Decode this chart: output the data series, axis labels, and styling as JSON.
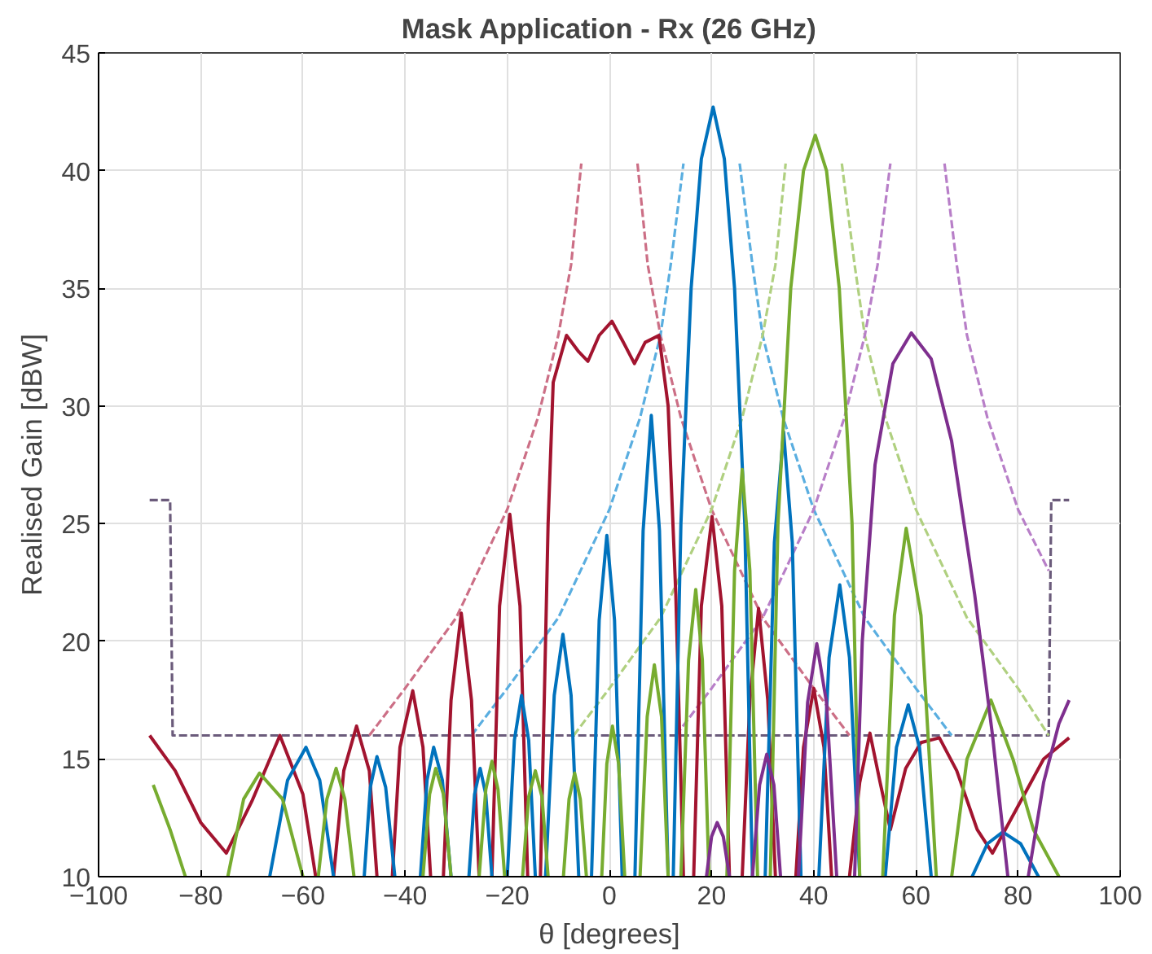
{
  "chart_data": {
    "type": "line",
    "title": "Mask Application - Rx (26 GHz)",
    "xlabel": "θ [degrees]",
    "ylabel": "Realised Gain [dBW]",
    "xlim": [
      -100,
      100
    ],
    "xticks": [
      -100,
      -80,
      -60,
      -40,
      -20,
      0,
      20,
      40,
      60,
      80,
      100
    ],
    "ylim": [
      10,
      45
    ],
    "yticks": [
      10,
      15,
      20,
      25,
      30,
      35,
      40,
      45
    ],
    "grid": true,
    "marker": "none",
    "series": [
      {
        "color": "#6b5b7b",
        "line_style": "dashed",
        "x": [
          -90,
          -86,
          -85.5,
          86,
          86.5,
          90
        ],
        "values": [
          26,
          26,
          16,
          16,
          26,
          26
        ]
      },
      {
        "color": "#cc6f86",
        "line_style": "dashed",
        "x": [
          -47,
          -40,
          -30,
          -20,
          -14,
          -10,
          -7.5,
          -5.5,
          0,
          5.5,
          7.5,
          10,
          14,
          20,
          30,
          40,
          47
        ],
        "values": [
          16,
          18,
          21,
          25.6,
          29.5,
          33,
          36,
          40.3,
          null,
          40.3,
          36,
          33,
          29.5,
          25.6,
          21,
          18,
          16
        ]
      },
      {
        "color": "#5aaee0",
        "line_style": "dashed",
        "x": [
          -27,
          -20,
          -10,
          0,
          6,
          10,
          12,
          14.5,
          20,
          25.5,
          28,
          30,
          34,
          40,
          50,
          60,
          67
        ],
        "values": [
          16,
          18,
          21,
          25.6,
          29.5,
          33,
          36,
          40.3,
          null,
          40.3,
          36,
          33,
          29.5,
          25.6,
          21,
          18,
          16
        ]
      },
      {
        "color": "#b0d080",
        "line_style": "dashed",
        "x": [
          -7,
          0,
          10,
          20,
          26,
          30,
          32.5,
          34.5,
          40,
          45.5,
          48,
          50,
          54,
          60,
          70,
          80,
          86
        ],
        "values": [
          16,
          18,
          21,
          25.6,
          29.5,
          33,
          36,
          40.3,
          null,
          40.3,
          36,
          33,
          29.5,
          25.6,
          21,
          18,
          16
        ]
      },
      {
        "color": "#b87fc8",
        "line_style": "dashed",
        "x": [
          13,
          20,
          30,
          40,
          46,
          50,
          52.5,
          55,
          60,
          65.6,
          68,
          70,
          74,
          80,
          86
        ],
        "values": [
          16,
          18,
          21,
          25.6,
          29.5,
          33,
          36,
          40.3,
          null,
          40.3,
          36,
          33,
          29.5,
          25.6,
          23
        ]
      },
      {
        "color": "#a2142f",
        "line_style": "solid",
        "x": [
          -90,
          -85,
          -80,
          -75,
          -70,
          -64.5,
          -60,
          -57.5,
          -56,
          -54,
          -52,
          -49.5,
          -47,
          -45.5,
          -44,
          -42.5,
          -41,
          -38.5,
          -36.5,
          -35,
          -34,
          -32.5,
          -31,
          -29,
          -27,
          -25.5,
          -24.5,
          -23,
          -21.5,
          -19.5,
          -17.5,
          -16,
          -14.5,
          -13.5,
          -12,
          -11,
          -8.4,
          -6,
          -4.2,
          -2,
          0.5,
          2.5,
          4.9,
          7,
          9.7,
          11.5,
          13,
          14.5,
          15.5,
          16.5,
          18,
          20.1,
          22,
          23.5,
          24.8,
          26,
          27.5,
          29.2,
          31,
          32.5,
          34.5,
          36.5,
          38,
          40,
          42,
          43.5,
          45,
          47,
          49,
          51,
          53,
          55,
          58,
          61,
          64.6,
          68,
          72,
          75,
          80,
          85,
          90
        ],
        "values": [
          16,
          14.5,
          12.3,
          11,
          13.2,
          16,
          13.5,
          10,
          null,
          10,
          14.5,
          16.4,
          14.5,
          10,
          null,
          10,
          15.5,
          17.9,
          15.5,
          10,
          null,
          10,
          17.5,
          21.2,
          17.5,
          10,
          null,
          10,
          21.5,
          25.4,
          21.5,
          10,
          null,
          10,
          25,
          31,
          33,
          32.3,
          31.9,
          33,
          33.6,
          32.8,
          31.8,
          32.7,
          33,
          30,
          22,
          10,
          null,
          10,
          21.5,
          25.3,
          21.5,
          10,
          null,
          10,
          17.5,
          21.4,
          17.5,
          10,
          null,
          10,
          15.5,
          18,
          15.5,
          10,
          null,
          10,
          14,
          16.1,
          14,
          12,
          14.6,
          15.7,
          15.9,
          14.5,
          12,
          11,
          13,
          15,
          15.9
        ]
      },
      {
        "color": "#0072bd",
        "line_style": "solid",
        "x": [
          -66.5,
          -63,
          -59.4,
          -56.7,
          -54,
          -53,
          -48,
          -46.8,
          -45.5,
          -43.8,
          -42,
          -41.5,
          -37,
          -35.7,
          -34.4,
          -32.7,
          -31,
          -30,
          -27.5,
          -26.4,
          -25.3,
          -24.2,
          -23,
          -22,
          -20,
          -18.6,
          -17.2,
          -15.8,
          -14.5,
          -13.5,
          -12.5,
          -10.8,
          -9.1,
          -7.5,
          -6,
          -5,
          -3.5,
          -2,
          -0.5,
          1,
          2.5,
          3.5,
          5,
          6.6,
          8.2,
          9.8,
          11.5,
          12,
          12.5,
          14,
          16,
          18,
          20.3,
          22.5,
          24.5,
          26.5,
          28,
          29,
          30.5,
          32.3,
          34.1,
          35.8,
          37.5,
          39,
          41,
          43,
          45.1,
          47,
          49,
          51,
          54,
          56.2,
          58.5,
          60.7,
          63,
          66,
          71,
          74,
          77,
          80.5,
          84
        ],
        "values": [
          10,
          14.1,
          15.5,
          14.1,
          10,
          null,
          10,
          13.8,
          15.1,
          13.8,
          10,
          null,
          10,
          14.1,
          15.5,
          14.1,
          10,
          null,
          10,
          13.5,
          14.6,
          13.5,
          10,
          null,
          10,
          15.8,
          17.7,
          15.8,
          10,
          null,
          10,
          17.7,
          20.3,
          17.7,
          10,
          null,
          10,
          20.9,
          24.5,
          20.9,
          10,
          null,
          10,
          24.7,
          29.6,
          24.7,
          10,
          null,
          10,
          25,
          35,
          40.5,
          42.7,
          40.5,
          35,
          25,
          10,
          null,
          10,
          24.2,
          28.9,
          24.2,
          10,
          null,
          10,
          19.3,
          22.4,
          19.3,
          10,
          null,
          10,
          15.5,
          17.3,
          15.5,
          10,
          null,
          10,
          11.4,
          11.9,
          11.4,
          10
        ]
      },
      {
        "color": "#77ac30",
        "line_style": "solid",
        "x": [
          -89.3,
          -86,
          -83,
          -80,
          -74.7,
          -71.6,
          -68.5,
          -64,
          -60,
          -59,
          -57,
          -55.3,
          -53.5,
          -51.8,
          -50,
          -45,
          -36.5,
          -35.2,
          -34,
          -32.5,
          -31,
          -30,
          -25.5,
          -24.2,
          -23,
          -21.8,
          -20.5,
          -19,
          -17,
          -15.8,
          -14.5,
          -13.2,
          -12,
          -11,
          -9,
          -7.9,
          -6.8,
          -5.7,
          -4.5,
          -3,
          -1.5,
          -0.5,
          0.6,
          1.8,
          3,
          4.5,
          6,
          7.4,
          8.8,
          10.2,
          11.5,
          13,
          14,
          15.5,
          16.9,
          18.2,
          19.5,
          21,
          23,
          24.5,
          26,
          27.5,
          29,
          30.5,
          31.5,
          33,
          35.5,
          38,
          40.3,
          42.5,
          45,
          47.5,
          49,
          51,
          53.5,
          55.8,
          58.1,
          61,
          64,
          65.5,
          67,
          70,
          74.7,
          79,
          83,
          88
        ],
        "values": [
          13.9,
          12,
          10,
          null,
          10,
          13.3,
          14.4,
          13.3,
          10,
          null,
          10,
          13.3,
          14.6,
          13.3,
          10,
          null,
          10,
          13.5,
          14.6,
          13.5,
          10,
          null,
          10,
          13.7,
          14.9,
          13.7,
          10,
          null,
          10,
          13.4,
          14.5,
          13.4,
          10,
          null,
          10,
          13.3,
          14.4,
          13.3,
          10,
          null,
          10,
          14.8,
          16.4,
          14.8,
          10,
          null,
          10,
          16.8,
          19,
          16.8,
          10,
          null,
          10,
          19.2,
          22.2,
          19.2,
          10,
          null,
          10,
          23,
          27.3,
          23,
          10,
          null,
          10,
          25,
          35,
          40,
          41.5,
          40,
          35,
          25,
          10,
          null,
          10,
          21.1,
          24.8,
          21.1,
          10,
          null,
          10,
          15,
          17.5,
          15,
          12,
          10
        ]
      },
      {
        "color": "#7e2f8e",
        "line_style": "solid",
        "x": [
          19,
          20,
          21.1,
          22.3,
          23.5,
          25,
          28,
          29.4,
          30.8,
          32.2,
          33.5,
          35,
          37,
          38.8,
          40.6,
          42.5,
          44.5,
          46,
          48,
          49.5,
          52,
          55.5,
          59.1,
          63,
          67,
          71.5,
          75,
          78,
          80,
          82,
          85,
          88,
          90
        ],
        "values": [
          10,
          11.7,
          12.3,
          11.7,
          10,
          null,
          10,
          13.9,
          15.2,
          13.9,
          10,
          null,
          10,
          17.4,
          19.9,
          17.4,
          10,
          null,
          10,
          20,
          27.5,
          31.8,
          33.1,
          32,
          28.5,
          22,
          16,
          10,
          null,
          10,
          14,
          16.5,
          17.5
        ]
      }
    ]
  }
}
